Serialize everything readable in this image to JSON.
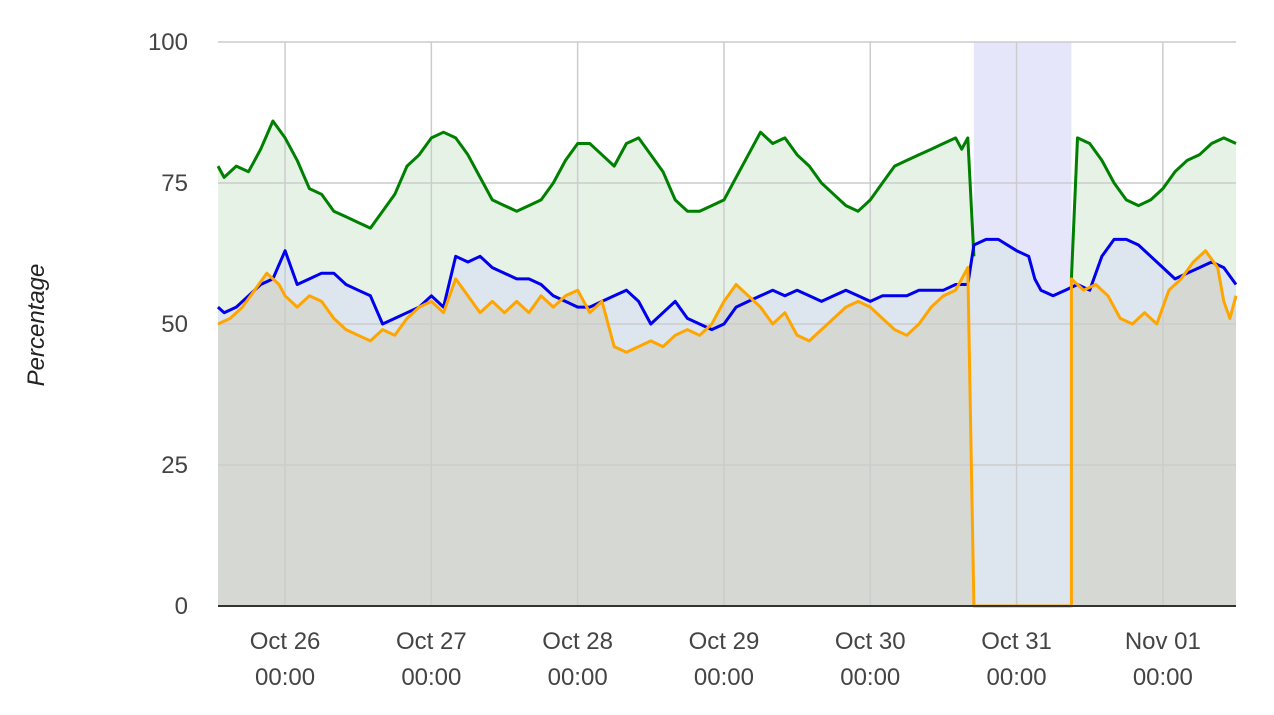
{
  "chart_data": {
    "type": "area",
    "title": "",
    "xlabel": "",
    "ylabel": "Percentage",
    "ylim": [
      0,
      100
    ],
    "yticks": [
      "0",
      "25",
      "50",
      "75",
      "100"
    ],
    "xlim": [
      "2023-10-25 13:00",
      "2023-11-01 12:00"
    ],
    "xticks": [
      {
        "date": "2023-10-26 00:00",
        "line1": "Oct 26",
        "line2": "00:00"
      },
      {
        "date": "2023-10-27 00:00",
        "line1": "Oct 27",
        "line2": "00:00"
      },
      {
        "date": "2023-10-28 00:00",
        "line1": "Oct 28",
        "line2": "00:00"
      },
      {
        "date": "2023-10-29 00:00",
        "line1": "Oct 29",
        "line2": "00:00"
      },
      {
        "date": "2023-10-30 00:00",
        "line1": "Oct 30",
        "line2": "00:00"
      },
      {
        "date": "2023-10-31 00:00",
        "line1": "Oct 31",
        "line2": "00:00"
      },
      {
        "date": "2023-11-01 00:00",
        "line1": "Nov 01",
        "line2": "00:00"
      }
    ],
    "grid": true,
    "legend": "none",
    "series": [
      {
        "color": "#008000",
        "fill": "#e6f2e6",
        "points": [
          [
            "2023-10-25 13:00",
            78
          ],
          [
            "2023-10-25 14:00",
            76
          ],
          [
            "2023-10-25 16:00",
            78
          ],
          [
            "2023-10-25 18:00",
            77
          ],
          [
            "2023-10-25 20:00",
            81
          ],
          [
            "2023-10-25 22:00",
            86
          ],
          [
            "2023-10-26 00:00",
            83
          ],
          [
            "2023-10-26 02:00",
            79
          ],
          [
            "2023-10-26 04:00",
            74
          ],
          [
            "2023-10-26 06:00",
            73
          ],
          [
            "2023-10-26 08:00",
            70
          ],
          [
            "2023-10-26 10:00",
            69
          ],
          [
            "2023-10-26 12:00",
            68
          ],
          [
            "2023-10-26 14:00",
            67
          ],
          [
            "2023-10-26 16:00",
            70
          ],
          [
            "2023-10-26 18:00",
            73
          ],
          [
            "2023-10-26 20:00",
            78
          ],
          [
            "2023-10-26 22:00",
            80
          ],
          [
            "2023-10-27 00:00",
            83
          ],
          [
            "2023-10-27 02:00",
            84
          ],
          [
            "2023-10-27 04:00",
            83
          ],
          [
            "2023-10-27 06:00",
            80
          ],
          [
            "2023-10-27 08:00",
            76
          ],
          [
            "2023-10-27 10:00",
            72
          ],
          [
            "2023-10-27 12:00",
            71
          ],
          [
            "2023-10-27 14:00",
            70
          ],
          [
            "2023-10-27 16:00",
            71
          ],
          [
            "2023-10-27 18:00",
            72
          ],
          [
            "2023-10-27 20:00",
            75
          ],
          [
            "2023-10-27 22:00",
            79
          ],
          [
            "2023-10-28 00:00",
            82
          ],
          [
            "2023-10-28 02:00",
            82
          ],
          [
            "2023-10-28 04:00",
            80
          ],
          [
            "2023-10-28 06:00",
            78
          ],
          [
            "2023-10-28 08:00",
            82
          ],
          [
            "2023-10-28 10:00",
            83
          ],
          [
            "2023-10-28 12:00",
            80
          ],
          [
            "2023-10-28 14:00",
            77
          ],
          [
            "2023-10-28 16:00",
            72
          ],
          [
            "2023-10-28 18:00",
            70
          ],
          [
            "2023-10-28 20:00",
            70
          ],
          [
            "2023-10-28 22:00",
            71
          ],
          [
            "2023-10-29 00:00",
            72
          ],
          [
            "2023-10-29 02:00",
            76
          ],
          [
            "2023-10-29 04:00",
            80
          ],
          [
            "2023-10-29 06:00",
            84
          ],
          [
            "2023-10-29 08:00",
            82
          ],
          [
            "2023-10-29 10:00",
            83
          ],
          [
            "2023-10-29 12:00",
            80
          ],
          [
            "2023-10-29 14:00",
            78
          ],
          [
            "2023-10-29 16:00",
            75
          ],
          [
            "2023-10-29 18:00",
            73
          ],
          [
            "2023-10-29 20:00",
            71
          ],
          [
            "2023-10-29 22:00",
            70
          ],
          [
            "2023-10-30 00:00",
            72
          ],
          [
            "2023-10-30 02:00",
            75
          ],
          [
            "2023-10-30 04:00",
            78
          ],
          [
            "2023-10-30 06:00",
            79
          ],
          [
            "2023-10-30 08:00",
            80
          ],
          [
            "2023-10-30 10:00",
            81
          ],
          [
            "2023-10-30 12:00",
            82
          ],
          [
            "2023-10-30 14:00",
            83
          ],
          [
            "2023-10-30 15:00",
            81
          ],
          [
            "2023-10-30 16:00",
            83
          ],
          [
            "2023-10-30 17:00",
            62
          ],
          [
            "2023-10-30 17:00",
            null
          ],
          [
            "2023-10-31 09:00",
            null
          ],
          [
            "2023-10-31 09:00",
            58
          ],
          [
            "2023-10-31 10:00",
            83
          ],
          [
            "2023-10-31 12:00",
            82
          ],
          [
            "2023-10-31 14:00",
            79
          ],
          [
            "2023-10-31 16:00",
            75
          ],
          [
            "2023-10-31 18:00",
            72
          ],
          [
            "2023-10-31 20:00",
            71
          ],
          [
            "2023-10-31 22:00",
            72
          ],
          [
            "2023-11-01 00:00",
            74
          ],
          [
            "2023-11-01 02:00",
            77
          ],
          [
            "2023-11-01 04:00",
            79
          ],
          [
            "2023-11-01 06:00",
            80
          ],
          [
            "2023-11-01 08:00",
            82
          ],
          [
            "2023-11-01 10:00",
            83
          ],
          [
            "2023-11-01 12:00",
            82
          ]
        ]
      },
      {
        "color": "#0000ee",
        "fill": "#dde6ee",
        "points": [
          [
            "2023-10-25 13:00",
            53
          ],
          [
            "2023-10-25 14:00",
            52
          ],
          [
            "2023-10-25 16:00",
            53
          ],
          [
            "2023-10-25 18:00",
            55
          ],
          [
            "2023-10-25 20:00",
            57
          ],
          [
            "2023-10-25 22:00",
            58
          ],
          [
            "2023-10-26 00:00",
            63
          ],
          [
            "2023-10-26 02:00",
            57
          ],
          [
            "2023-10-26 04:00",
            58
          ],
          [
            "2023-10-26 06:00",
            59
          ],
          [
            "2023-10-26 08:00",
            59
          ],
          [
            "2023-10-26 10:00",
            57
          ],
          [
            "2023-10-26 12:00",
            56
          ],
          [
            "2023-10-26 14:00",
            55
          ],
          [
            "2023-10-26 16:00",
            50
          ],
          [
            "2023-10-26 18:00",
            51
          ],
          [
            "2023-10-26 20:00",
            52
          ],
          [
            "2023-10-26 22:00",
            53
          ],
          [
            "2023-10-27 00:00",
            55
          ],
          [
            "2023-10-27 02:00",
            53
          ],
          [
            "2023-10-27 04:00",
            62
          ],
          [
            "2023-10-27 06:00",
            61
          ],
          [
            "2023-10-27 08:00",
            62
          ],
          [
            "2023-10-27 10:00",
            60
          ],
          [
            "2023-10-27 12:00",
            59
          ],
          [
            "2023-10-27 14:00",
            58
          ],
          [
            "2023-10-27 16:00",
            58
          ],
          [
            "2023-10-27 18:00",
            57
          ],
          [
            "2023-10-27 20:00",
            55
          ],
          [
            "2023-10-27 22:00",
            54
          ],
          [
            "2023-10-28 00:00",
            53
          ],
          [
            "2023-10-28 02:00",
            53
          ],
          [
            "2023-10-28 04:00",
            54
          ],
          [
            "2023-10-28 06:00",
            55
          ],
          [
            "2023-10-28 08:00",
            56
          ],
          [
            "2023-10-28 10:00",
            54
          ],
          [
            "2023-10-28 12:00",
            50
          ],
          [
            "2023-10-28 14:00",
            52
          ],
          [
            "2023-10-28 16:00",
            54
          ],
          [
            "2023-10-28 18:00",
            51
          ],
          [
            "2023-10-28 20:00",
            50
          ],
          [
            "2023-10-28 22:00",
            49
          ],
          [
            "2023-10-29 00:00",
            50
          ],
          [
            "2023-10-29 02:00",
            53
          ],
          [
            "2023-10-29 04:00",
            54
          ],
          [
            "2023-10-29 06:00",
            55
          ],
          [
            "2023-10-29 08:00",
            56
          ],
          [
            "2023-10-29 10:00",
            55
          ],
          [
            "2023-10-29 12:00",
            56
          ],
          [
            "2023-10-29 14:00",
            55
          ],
          [
            "2023-10-29 16:00",
            54
          ],
          [
            "2023-10-29 18:00",
            55
          ],
          [
            "2023-10-29 20:00",
            56
          ],
          [
            "2023-10-29 22:00",
            55
          ],
          [
            "2023-10-30 00:00",
            54
          ],
          [
            "2023-10-30 02:00",
            55
          ],
          [
            "2023-10-30 04:00",
            55
          ],
          [
            "2023-10-30 06:00",
            55
          ],
          [
            "2023-10-30 08:00",
            56
          ],
          [
            "2023-10-30 10:00",
            56
          ],
          [
            "2023-10-30 12:00",
            56
          ],
          [
            "2023-10-30 14:00",
            57
          ],
          [
            "2023-10-30 16:00",
            57
          ],
          [
            "2023-10-30 17:00",
            64
          ],
          [
            "2023-10-30 19:00",
            65
          ],
          [
            "2023-10-30 21:00",
            65
          ],
          [
            "2023-10-31 00:00",
            63
          ],
          [
            "2023-10-31 02:00",
            62
          ],
          [
            "2023-10-31 03:00",
            58
          ],
          [
            "2023-10-31 04:00",
            56
          ],
          [
            "2023-10-31 06:00",
            55
          ],
          [
            "2023-10-31 08:00",
            56
          ],
          [
            "2023-10-31 10:00",
            57
          ],
          [
            "2023-10-31 12:00",
            56
          ],
          [
            "2023-10-31 14:00",
            62
          ],
          [
            "2023-10-31 16:00",
            65
          ],
          [
            "2023-10-31 18:00",
            65
          ],
          [
            "2023-10-31 20:00",
            64
          ],
          [
            "2023-10-31 22:00",
            62
          ],
          [
            "2023-11-01 00:00",
            60
          ],
          [
            "2023-11-01 02:00",
            58
          ],
          [
            "2023-11-01 04:00",
            59
          ],
          [
            "2023-11-01 06:00",
            60
          ],
          [
            "2023-11-01 08:00",
            61
          ],
          [
            "2023-11-01 10:00",
            60
          ],
          [
            "2023-11-01 12:00",
            57
          ]
        ]
      },
      {
        "color": "#ffa500",
        "fill": "#d6d8d3",
        "points": [
          [
            "2023-10-25 13:00",
            50
          ],
          [
            "2023-10-25 15:00",
            51
          ],
          [
            "2023-10-25 17:00",
            53
          ],
          [
            "2023-10-25 19:00",
            56
          ],
          [
            "2023-10-25 21:00",
            59
          ],
          [
            "2023-10-25 23:00",
            57
          ],
          [
            "2023-10-26 00:00",
            55
          ],
          [
            "2023-10-26 02:00",
            53
          ],
          [
            "2023-10-26 04:00",
            55
          ],
          [
            "2023-10-26 06:00",
            54
          ],
          [
            "2023-10-26 08:00",
            51
          ],
          [
            "2023-10-26 10:00",
            49
          ],
          [
            "2023-10-26 12:00",
            48
          ],
          [
            "2023-10-26 14:00",
            47
          ],
          [
            "2023-10-26 16:00",
            49
          ],
          [
            "2023-10-26 18:00",
            48
          ],
          [
            "2023-10-26 20:00",
            51
          ],
          [
            "2023-10-26 22:00",
            53
          ],
          [
            "2023-10-27 00:00",
            54
          ],
          [
            "2023-10-27 02:00",
            52
          ],
          [
            "2023-10-27 04:00",
            58
          ],
          [
            "2023-10-27 06:00",
            55
          ],
          [
            "2023-10-27 08:00",
            52
          ],
          [
            "2023-10-27 10:00",
            54
          ],
          [
            "2023-10-27 12:00",
            52
          ],
          [
            "2023-10-27 14:00",
            54
          ],
          [
            "2023-10-27 16:00",
            52
          ],
          [
            "2023-10-27 18:00",
            55
          ],
          [
            "2023-10-27 20:00",
            53
          ],
          [
            "2023-10-27 22:00",
            55
          ],
          [
            "2023-10-28 00:00",
            56
          ],
          [
            "2023-10-28 02:00",
            52
          ],
          [
            "2023-10-28 04:00",
            54
          ],
          [
            "2023-10-28 06:00",
            46
          ],
          [
            "2023-10-28 08:00",
            45
          ],
          [
            "2023-10-28 10:00",
            46
          ],
          [
            "2023-10-28 12:00",
            47
          ],
          [
            "2023-10-28 14:00",
            46
          ],
          [
            "2023-10-28 16:00",
            48
          ],
          [
            "2023-10-28 18:00",
            49
          ],
          [
            "2023-10-28 20:00",
            48
          ],
          [
            "2023-10-28 22:00",
            50
          ],
          [
            "2023-10-29 00:00",
            54
          ],
          [
            "2023-10-29 02:00",
            57
          ],
          [
            "2023-10-29 04:00",
            55
          ],
          [
            "2023-10-29 06:00",
            53
          ],
          [
            "2023-10-29 08:00",
            50
          ],
          [
            "2023-10-29 10:00",
            52
          ],
          [
            "2023-10-29 12:00",
            48
          ],
          [
            "2023-10-29 14:00",
            47
          ],
          [
            "2023-10-29 16:00",
            49
          ],
          [
            "2023-10-29 18:00",
            51
          ],
          [
            "2023-10-29 20:00",
            53
          ],
          [
            "2023-10-29 22:00",
            54
          ],
          [
            "2023-10-30 00:00",
            53
          ],
          [
            "2023-10-30 02:00",
            51
          ],
          [
            "2023-10-30 04:00",
            49
          ],
          [
            "2023-10-30 06:00",
            48
          ],
          [
            "2023-10-30 08:00",
            50
          ],
          [
            "2023-10-30 10:00",
            53
          ],
          [
            "2023-10-30 12:00",
            55
          ],
          [
            "2023-10-30 14:00",
            56
          ],
          [
            "2023-10-30 16:00",
            60
          ],
          [
            "2023-10-30 17:00",
            0
          ],
          [
            "2023-10-31 09:00",
            0
          ],
          [
            "2023-10-31 09:00",
            58
          ],
          [
            "2023-10-31 11:00",
            56
          ],
          [
            "2023-10-31 13:00",
            57
          ],
          [
            "2023-10-31 15:00",
            55
          ],
          [
            "2023-10-31 17:00",
            51
          ],
          [
            "2023-10-31 19:00",
            50
          ],
          [
            "2023-10-31 21:00",
            52
          ],
          [
            "2023-10-31 23:00",
            50
          ],
          [
            "2023-11-01 01:00",
            56
          ],
          [
            "2023-11-01 03:00",
            58
          ],
          [
            "2023-11-01 05:00",
            61
          ],
          [
            "2023-11-01 07:00",
            63
          ],
          [
            "2023-11-01 09:00",
            60
          ],
          [
            "2023-11-01 10:00",
            54
          ],
          [
            "2023-11-01 11:00",
            51
          ],
          [
            "2023-11-01 12:00",
            55
          ]
        ]
      }
    ],
    "outage_band": {
      "from": "2023-10-30 17:00",
      "to": "2023-10-31 09:00",
      "color": "#e6e6fa"
    }
  }
}
